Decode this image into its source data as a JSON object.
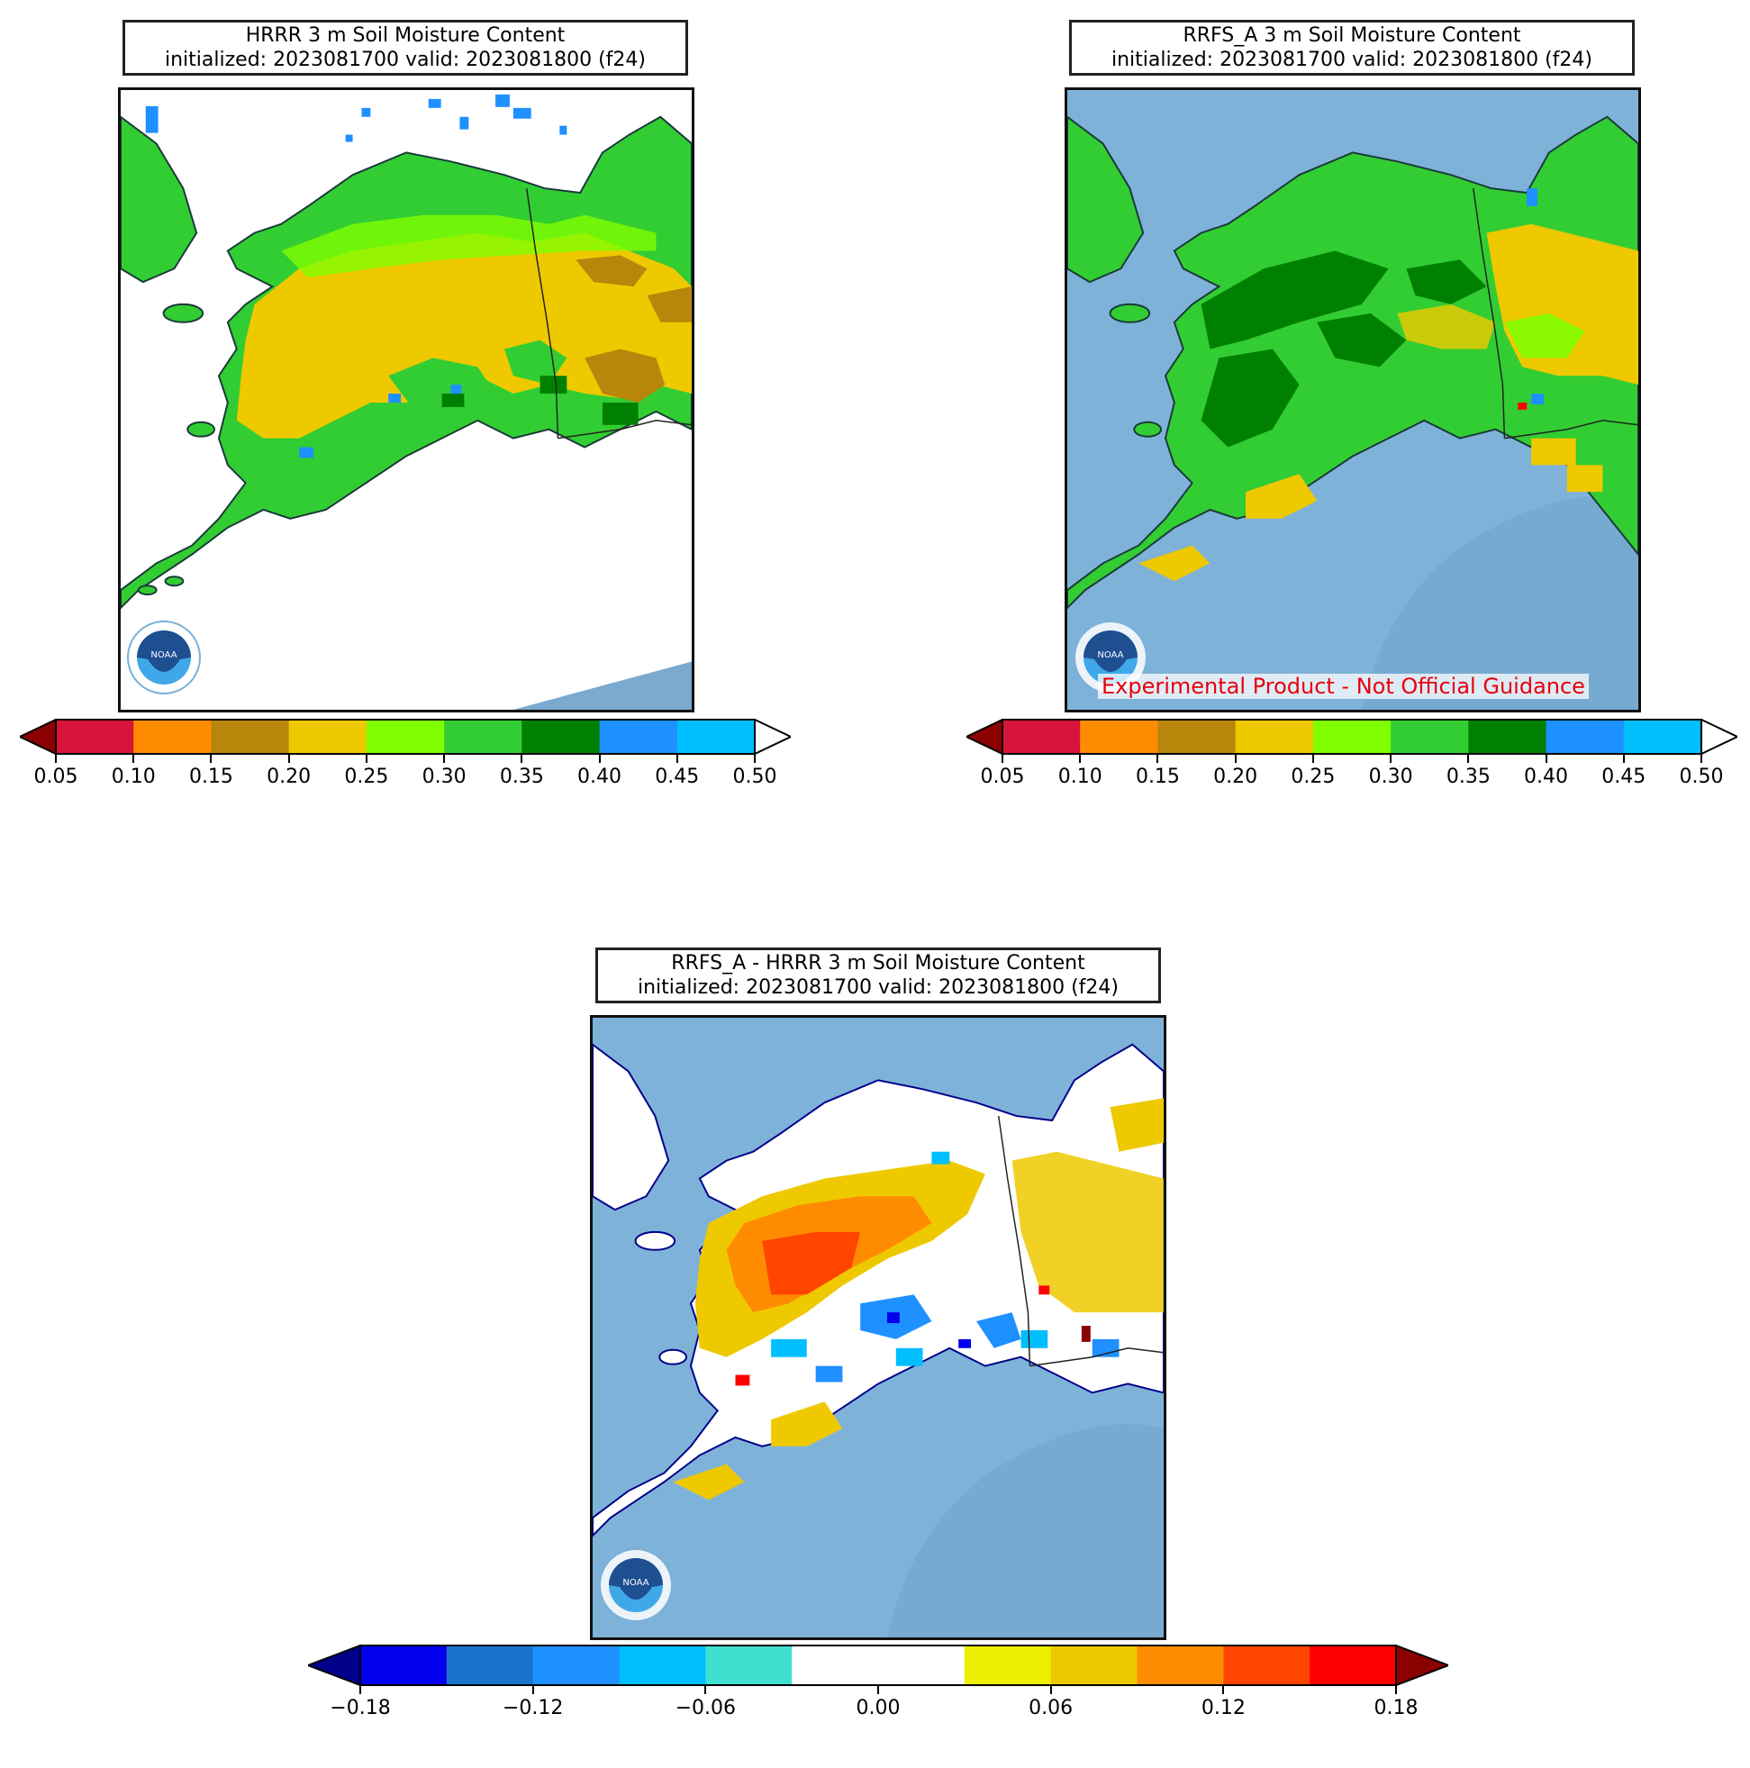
{
  "panels": {
    "hrrr": {
      "title_line1": "HRRR 3 m Soil Moisture Content",
      "title_line2": "initialized: 2023081700 valid: 2023081800 (f24)"
    },
    "rrfs": {
      "title_line1": "RRFS_A 3 m Soil Moisture Content",
      "title_line2": "initialized: 2023081700 valid: 2023081800 (f24)",
      "watermark": "Experimental Product - Not Official Guidance"
    },
    "diff": {
      "title_line1": "RRFS_A - HRRR 3 m Soil Moisture Content",
      "title_line2": "initialized: 2023081700 valid: 2023081800 (f24)"
    }
  },
  "logo_text": "NOAA",
  "colorbars": {
    "moisture": {
      "ticks": [
        "0.05",
        "0.10",
        "0.15",
        "0.20",
        "0.25",
        "0.30",
        "0.35",
        "0.40",
        "0.45",
        "0.50"
      ],
      "colors": [
        "#d7153a",
        "#ff8c00",
        "#b8860b",
        "#eec900",
        "#7fff00",
        "#32cd32",
        "#008000",
        "#1e90ff",
        "#00bfff"
      ],
      "under_color": "#8b0000",
      "over_color": "#ffffff"
    },
    "difference": {
      "ticks": [
        "−0.18",
        "−0.12",
        "−0.06",
        "0.00",
        "0.06",
        "0.12",
        "0.18"
      ],
      "colors": [
        "#0000ee",
        "#1874cd",
        "#1e90ff",
        "#00bfff",
        "#40e0d0",
        "#ffffff",
        "#ffffff",
        "#eeee00",
        "#eec900",
        "#ff8c00",
        "#ff4500",
        "#ff0000"
      ],
      "under_color": "#00008b",
      "over_color": "#8b0000"
    }
  }
}
